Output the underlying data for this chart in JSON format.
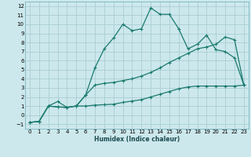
{
  "background_color": "#cce8ec",
  "grid_color": "#aacdd4",
  "line_color": "#1a7a6e",
  "xlabel": "Humidex (Indice chaleur)",
  "xlim": [
    -0.5,
    23.5
  ],
  "ylim": [
    -1.5,
    12.5
  ],
  "yticks": [
    -1,
    0,
    1,
    2,
    3,
    4,
    5,
    6,
    7,
    8,
    9,
    10,
    11,
    12
  ],
  "xticks": [
    0,
    1,
    2,
    3,
    4,
    5,
    6,
    7,
    8,
    9,
    10,
    11,
    12,
    13,
    14,
    15,
    16,
    17,
    18,
    19,
    20,
    21,
    22,
    23
  ],
  "line1_x": [
    0,
    1,
    2,
    3,
    4,
    5,
    6,
    7,
    8,
    9,
    10,
    11,
    12,
    13,
    14,
    15,
    16,
    17,
    18,
    19,
    20,
    21,
    22,
    23
  ],
  "line1_y": [
    -0.8,
    -0.7,
    1.0,
    0.9,
    0.85,
    1.0,
    1.0,
    1.1,
    1.15,
    1.2,
    1.4,
    1.55,
    1.7,
    2.0,
    2.3,
    2.6,
    2.9,
    3.1,
    3.2,
    3.2,
    3.2,
    3.2,
    3.2,
    3.3
  ],
  "line2_x": [
    0,
    1,
    2,
    3,
    4,
    5,
    6,
    7,
    8,
    9,
    10,
    11,
    12,
    13,
    14,
    15,
    16,
    17,
    18,
    19,
    20,
    21,
    22,
    23
  ],
  "line2_y": [
    -0.8,
    -0.7,
    1.0,
    0.9,
    0.85,
    1.0,
    2.2,
    3.3,
    3.5,
    3.6,
    3.8,
    4.0,
    4.3,
    4.7,
    5.2,
    5.8,
    6.3,
    6.8,
    7.3,
    7.5,
    7.8,
    8.6,
    8.3,
    3.3
  ],
  "line3_x": [
    0,
    1,
    2,
    3,
    4,
    5,
    6,
    7,
    8,
    9,
    10,
    11,
    12,
    13,
    14,
    15,
    16,
    17,
    18,
    19,
    20,
    21,
    22,
    23
  ],
  "line3_y": [
    -0.8,
    -0.7,
    1.0,
    1.5,
    0.85,
    1.0,
    2.2,
    5.2,
    7.3,
    8.5,
    10.0,
    9.3,
    9.5,
    11.8,
    11.1,
    11.1,
    9.5,
    7.3,
    7.8,
    8.8,
    7.2,
    7.0,
    6.3,
    3.3
  ]
}
